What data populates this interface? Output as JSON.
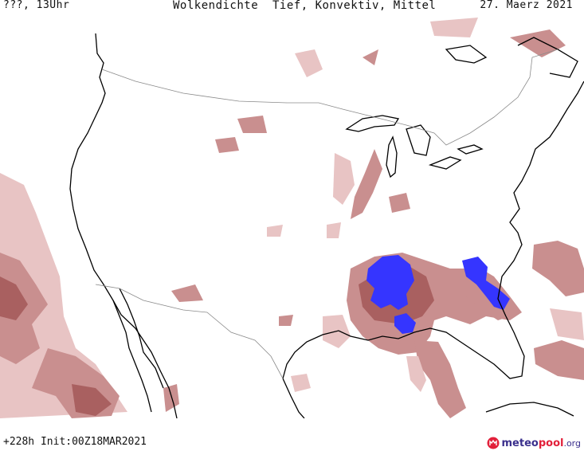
{
  "header": {
    "left_label": "???, 13Uhr",
    "title": "Wolkendichte  Tief, Konvektiv, Mittel",
    "date": "27. Maerz 2021"
  },
  "footer": {
    "run_info": "+228h Init:00Z18MAR2021"
  },
  "brand": {
    "name_main": "meteo",
    "name_accent": "pool",
    "tld": ".org",
    "logo_icon": "meteopool-logo-icon"
  },
  "legend_colors": {
    "light": "#e8c4c4",
    "medium": "#c98f8f",
    "dense": "#a96060",
    "convective": "#3535ff",
    "coast": "#000000",
    "border": "#8a8a8a"
  }
}
